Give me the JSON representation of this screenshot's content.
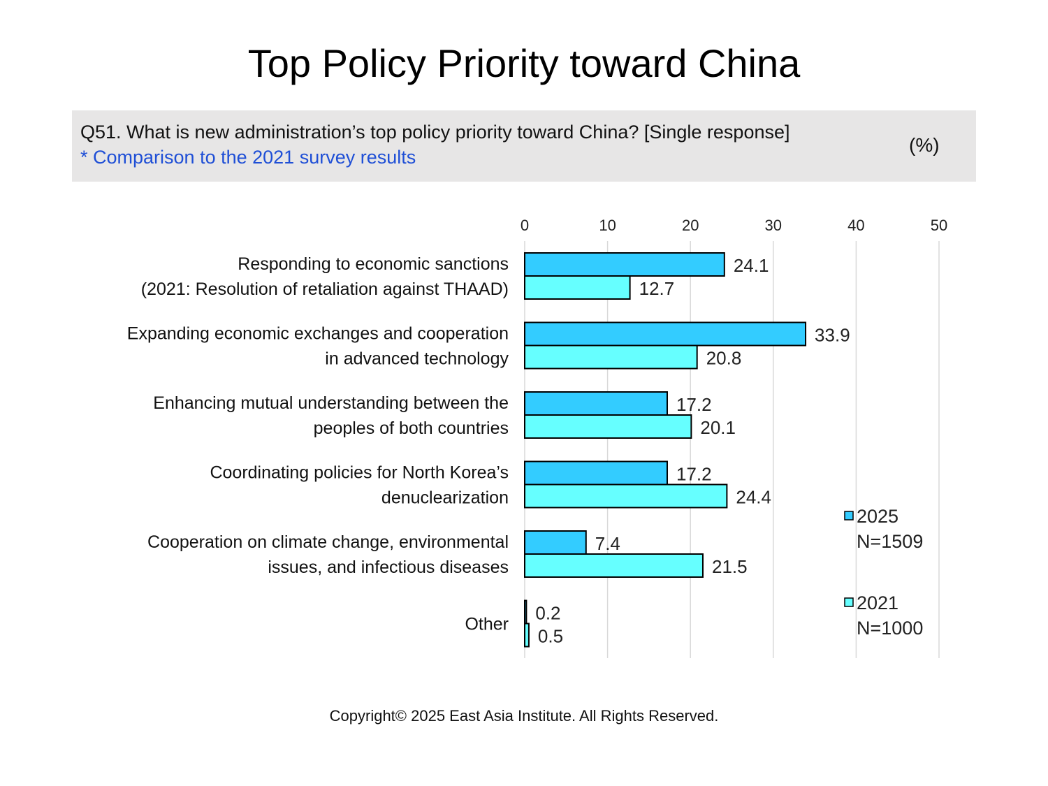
{
  "title": "Top Policy Priority toward China",
  "question": {
    "text": "Q51. What is new administration’s top policy priority toward China? [Single response]",
    "note": "* Comparison to the 2021 survey results",
    "unit": "(%)"
  },
  "copyright": "Copyright© 2025 East Asia Institute. All Rights Reserved.",
  "chart_data": {
    "type": "bar",
    "orientation": "horizontal",
    "categories": [
      [
        "Responding to economic sanctions",
        "(2021: Resolution of retaliation against THAAD)"
      ],
      [
        "Expanding economic exchanges and cooperation",
        "in advanced technology"
      ],
      [
        "Enhancing mutual understanding between the",
        "peoples of both countries"
      ],
      [
        "Coordinating policies for North Korea’s",
        "denuclearization"
      ],
      [
        "Cooperation on climate change, environmental",
        "issues, and infectious diseases"
      ],
      [
        "Other"
      ]
    ],
    "series": [
      {
        "name": "2025",
        "n": "N=1509",
        "color": "#33ccff",
        "values": [
          24.1,
          33.9,
          17.2,
          17.2,
          7.4,
          0.2
        ]
      },
      {
        "name": "2021",
        "n": "N=1000",
        "color": "#66ffff",
        "values": [
          12.7,
          20.8,
          20.1,
          24.4,
          21.5,
          0.5
        ]
      }
    ],
    "xlim": [
      0,
      50
    ],
    "xticks": [
      0,
      10,
      20,
      30,
      40,
      50
    ],
    "grid": true,
    "legend_position": "right",
    "bar_edge_color": "#000000",
    "grid_color": "#d9d9d9"
  }
}
